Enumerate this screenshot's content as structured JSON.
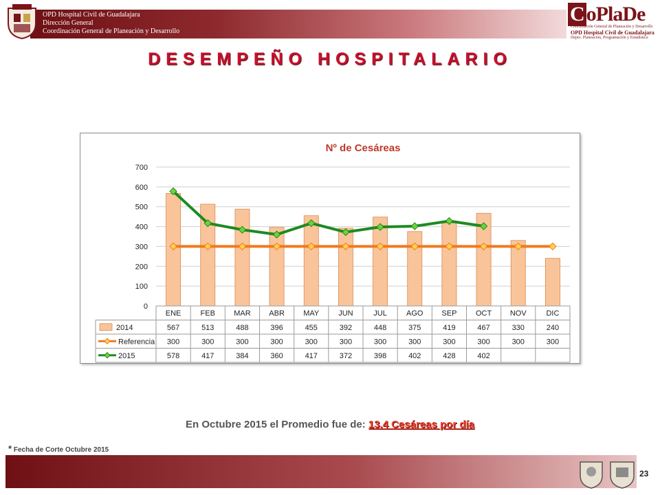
{
  "header": {
    "lines": [
      "OPD Hospital Civil de Guadalajara",
      "Dirección General",
      "Coordinación General de Planeación y Desarrollo"
    ],
    "logo_text": "CoPlaDe",
    "logo_lines": [
      "Coordinación General de Planeación y Desarrollo",
      "OPD Hospital Civil de Guadalajara",
      "Depto. Planeación, Programación y Estadística"
    ],
    "brand_color": "#7a1419"
  },
  "page_title": "DESEMPEÑO HOSPITALARIO",
  "chart_data": {
    "type": "bar",
    "title": "Nº de Cesáreas",
    "categories": [
      "ENE",
      "FEB",
      "MAR",
      "ABR",
      "MAY",
      "JUN",
      "JUL",
      "AGO",
      "SEP",
      "OCT",
      "NOV",
      "DIC"
    ],
    "ylim": [
      0,
      700
    ],
    "yticks": [
      0,
      100,
      200,
      300,
      400,
      500,
      600,
      700
    ],
    "grid": true,
    "legend": "data-table",
    "series": [
      {
        "name": "2014",
        "type": "bar",
        "color": "#f9c49a",
        "values": [
          567,
          513,
          488,
          396,
          455,
          392,
          448,
          375,
          419,
          467,
          330,
          240
        ]
      },
      {
        "name": "Referencia",
        "type": "line",
        "color": "#f07a1e",
        "marker_color": "#ffd04a",
        "values": [
          300,
          300,
          300,
          300,
          300,
          300,
          300,
          300,
          300,
          300,
          300,
          300
        ]
      },
      {
        "name": "2015",
        "type": "line",
        "color": "#1d8a20",
        "marker_color": "#6fd23a",
        "values": [
          578,
          417,
          384,
          360,
          417,
          372,
          398,
          402,
          428,
          402,
          null,
          null
        ]
      }
    ]
  },
  "note": {
    "text": "En Octubre 2015  el Promedio fue de:",
    "highlight": "13.4 Cesáreas por día"
  },
  "cutoff": {
    "star": "*",
    "text": " Fecha de Corte Octubre 2015"
  },
  "footer": {
    "page_number": "23"
  }
}
